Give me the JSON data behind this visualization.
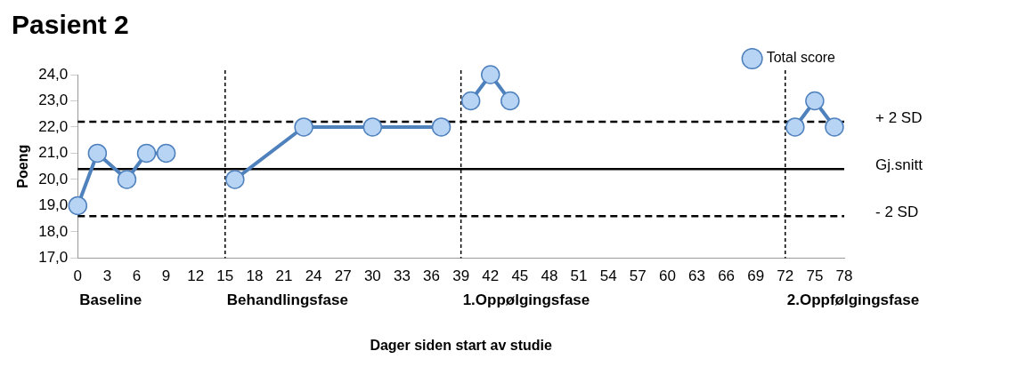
{
  "chart_data": {
    "type": "line",
    "title": "Pasient 2",
    "xlabel": "Dager siden start av studie",
    "ylabel": "Poeng",
    "x": [
      0,
      2,
      5,
      7,
      9,
      12,
      16,
      23,
      30,
      37,
      38,
      40,
      42,
      44,
      58,
      73,
      75,
      77
    ],
    "series": [
      {
        "name": "Total score",
        "color": "#4f81bd",
        "values": [
          19,
          21,
          20,
          21,
          21,
          null,
          20,
          22,
          22,
          22,
          null,
          23,
          24,
          23,
          null,
          22,
          23,
          22
        ]
      }
    ],
    "xlim": [
      0,
      78
    ],
    "xticks": [
      0,
      3,
      6,
      9,
      12,
      15,
      18,
      21,
      24,
      27,
      30,
      33,
      36,
      39,
      42,
      45,
      48,
      51,
      54,
      57,
      60,
      63,
      66,
      69,
      72,
      75,
      78
    ],
    "ylim": [
      17,
      24
    ],
    "yticks": [
      {
        "value": 17,
        "label": "17,0"
      },
      {
        "value": 18,
        "label": "18,0"
      },
      {
        "value": 19,
        "label": "19,0"
      },
      {
        "value": 20,
        "label": "20,0"
      },
      {
        "value": 21,
        "label": "21,0"
      },
      {
        "value": 22,
        "label": "22,0"
      },
      {
        "value": 23,
        "label": "23,0"
      },
      {
        "value": 24,
        "label": "24,0"
      }
    ],
    "ref_lines": [
      {
        "axis": "y",
        "value": 22.2,
        "label": "+ 2 SD",
        "color": "#000000",
        "line_style": "dashed"
      },
      {
        "axis": "y",
        "value": 20.4,
        "label": "Gj.snitt",
        "color": "#000000",
        "line_style": "solid"
      },
      {
        "axis": "y",
        "value": 18.6,
        "label": "- 2 SD",
        "color": "#000000",
        "line_style": "dashed"
      },
      {
        "axis": "x",
        "value": 15,
        "color": "#000000",
        "line_style": "dashed"
      },
      {
        "axis": "x",
        "value": 39,
        "color": "#000000",
        "line_style": "dashed"
      },
      {
        "axis": "x",
        "value": 72,
        "color": "#000000",
        "line_style": "dashed"
      }
    ],
    "annotations": [
      "Baseline",
      "Behandlingsfase",
      "1.Oppølgingsfase",
      "2.Oppfølgingsfase"
    ],
    "grid": false,
    "legend": "top right",
    "marker": "circle",
    "line_style": "solid"
  }
}
